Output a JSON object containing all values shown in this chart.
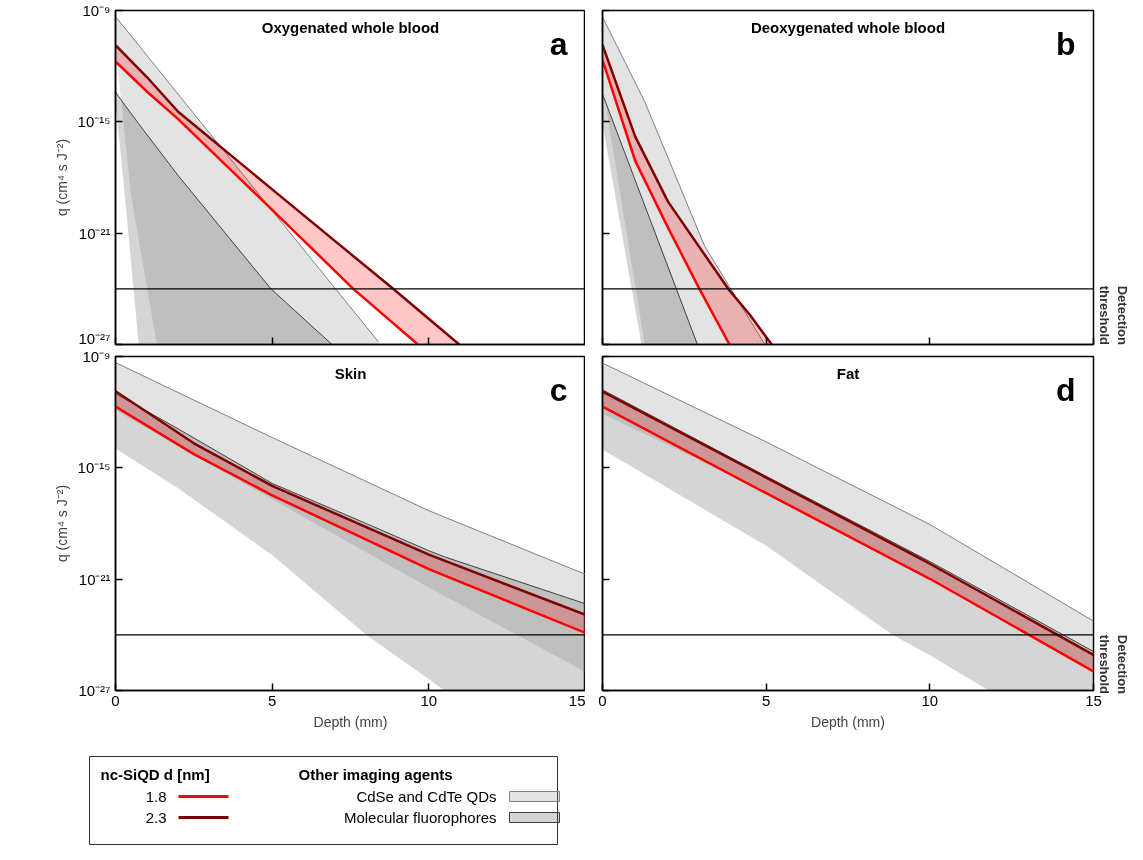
{
  "chart_data": [
    {
      "type": "line",
      "title": "Oxygenated whole blood",
      "ylabel": "q (cm⁴ s J⁻²)",
      "legend": "bottom",
      "legend_title": "nc-SiQD d [nm]",
      "annotations": [
        "a",
        "Other imaging agents"
      ],
      "tick_labels": "y",
      "log": "y",
      "xlim": [
        0,
        15
      ],
      "xticks": [
        0,
        5,
        10,
        15
      ],
      "ylim": [
        1e-27,
        1e-09
      ],
      "yticks": [
        {
          "value": 1e-09,
          "label": "10⁻⁹"
        },
        {
          "value": 1e-15,
          "label": "10⁻¹⁵"
        },
        {
          "value": 1e-21,
          "label": "10⁻²¹"
        },
        {
          "value": 1e-27,
          "label": "10⁻²⁷"
        }
      ],
      "ref_lines": [
        {
          "axis": "y",
          "value": 1e-24,
          "color": "#000000"
        }
      ],
      "series": [
        {
          "name": "CdSe and CdTe QDs",
          "color": "#808080",
          "x": [
            0,
            0.5,
            1.32,
            4,
            8.39
          ],
          "values": [
            4.7e-10,
            4.3e-11,
            8.1e-13,
            2e-18,
            1.4e-27
          ],
          "upper": [
            4.7e-10,
            4.3e-11,
            8.1e-13,
            2e-18,
            1.4e-27
          ],
          "lower": [
            1e-11,
            1e-19,
            1e-27,
            1e-27,
            1e-27
          ]
        },
        {
          "name": "Molecular fluorophores",
          "color": "#404040",
          "x": [
            0,
            0.3,
            0.74,
            2,
            4.96,
            6.91
          ],
          "values": [
            4e-14,
            7.9e-15,
            7.9e-16,
            1.26e-18,
            1e-24,
            1e-27
          ],
          "upper": [
            4e-14,
            7.9e-15,
            7.9e-16,
            1.26e-18,
            1e-24,
            1e-27
          ],
          "lower": [
            1e-14,
            1e-19,
            1e-27,
            1e-27,
            1e-27,
            1e-27
          ]
        },
        {
          "name": "1.8",
          "color": "#ff0000",
          "x": [
            0,
            1,
            2,
            5,
            7.59,
            9.65,
            10.97
          ],
          "values": [
            1.8e-12,
            4.3e-14,
            1.4e-15,
            1.8e-20,
            1e-24,
            1e-27,
            null
          ],
          "lower": [
            1.8e-12,
            4.3e-14,
            1.4e-15,
            1.8e-20,
            1e-24,
            1e-27,
            1e-27
          ],
          "upper": [
            1.35e-11,
            2.6e-13,
            3.5e-15,
            2.3e-19,
            5.9e-23,
            7.6e-26,
            1e-27
          ]
        },
        {
          "name": "2.3",
          "color": "#7f0000",
          "x": [
            0,
            1,
            2,
            5,
            8.86,
            10.97
          ],
          "values": [
            1.35e-11,
            2.6e-13,
            3.5e-15,
            2.3e-19,
            1e-24,
            1e-27
          ]
        }
      ]
    },
    {
      "type": "line",
      "title": "Deoxygenated whole blood",
      "annotations": [
        "b"
      ],
      "tick_labels": false,
      "log": "y",
      "xlim": [
        0,
        15
      ],
      "xticks": [
        0,
        5,
        10,
        15
      ],
      "ylim": [
        1e-27,
        1e-09
      ],
      "yticks": [
        {
          "value": 1e-09,
          "label": null
        },
        {
          "value": 1e-15,
          "label": null
        },
        {
          "value": 1e-21,
          "label": null
        },
        {
          "value": 1e-27,
          "label": null
        }
      ],
      "ref_lines": [
        {
          "axis": "y",
          "value": 1e-24,
          "label": "Detection threshold",
          "color": "#000000"
        }
      ],
      "series": [
        {
          "color": "#808080",
          "x": [
            0,
            1.29,
            3.12,
            4.96
          ],
          "values": [
            4.5e-10,
            1.23e-14,
            2e-22,
            1e-27
          ],
          "upper": [
            4.5e-10,
            1.23e-14,
            2e-22,
            1e-27
          ],
          "lower": [
            1e-13,
            1e-27,
            1e-27,
            1e-27
          ]
        },
        {
          "color": "#404040",
          "x": [
            0,
            1.19,
            2.9
          ],
          "values": [
            3.2e-14,
            9.1e-20,
            1e-27
          ],
          "upper": [
            3.2e-14,
            9.1e-20,
            1e-27
          ],
          "lower": [
            7.9e-16,
            1e-27,
            1e-27
          ]
        },
        {
          "color": "#ff0000",
          "x": [
            0,
            1,
            2,
            2.96,
            3.88,
            4.5,
            5.17
          ],
          "values": [
            2.2e-12,
            7.9e-18,
            2e-21,
            1e-24,
            1e-27,
            null,
            null
          ],
          "lower": [
            2.2e-12,
            7.9e-18,
            2e-21,
            1e-24,
            1e-27,
            1e-27,
            1e-27
          ],
          "upper": [
            1.41e-11,
            1.6e-16,
            5e-20,
            1.8e-22,
            8.3e-25,
            4e-26,
            1e-27
          ]
        },
        {
          "color": "#7f0000",
          "x": [
            0,
            1,
            2,
            3.84,
            4.5,
            5.17
          ],
          "values": [
            1.41e-11,
            1.6e-16,
            5e-20,
            1e-24,
            4e-26,
            1e-27
          ]
        }
      ]
    },
    {
      "type": "line",
      "title": "Skin",
      "xlabel": "Depth (mm)",
      "ylabel": "q (cm⁴ s J⁻²)",
      "annotations": [
        "c"
      ],
      "log": "y",
      "xlim": [
        0,
        15
      ],
      "xticks": [
        0,
        5,
        10,
        15
      ],
      "ylim": [
        1e-27,
        1e-09
      ],
      "yticks": [
        {
          "value": 1e-09,
          "label": "10⁻⁹"
        },
        {
          "value": 1e-15,
          "label": "10⁻¹⁵"
        },
        {
          "value": 1e-21,
          "label": "10⁻²¹"
        },
        {
          "value": 1e-27,
          "label": "10⁻²⁷"
        }
      ],
      "ref_lines": [
        {
          "axis": "y",
          "value": 1e-24,
          "color": "#000000"
        }
      ],
      "series": [
        {
          "color": "#808080",
          "x": [
            0,
            5,
            10,
            15
          ],
          "values": [
            4.7e-10,
            4.3e-14,
            4.9e-18,
            1.8e-21
          ],
          "upper": [
            4.7e-10,
            4.3e-14,
            4.9e-18,
            1.8e-21
          ],
          "lower": [
            1.26e-12,
            2e-17,
            3.6e-22,
            1e-26
          ]
        },
        {
          "color": "#404040",
          "x": [
            0,
            2,
            5,
            8,
            10,
            10.5,
            15
          ],
          "values": [
            1e-11,
            1.26e-13,
            1.45e-16,
            1e-18,
            3.4e-20,
            1.6e-20,
            4.7e-23
          ],
          "upper": [
            1e-11,
            1.26e-13,
            1.45e-16,
            1e-18,
            3.4e-20,
            1.6e-20,
            4.7e-23
          ],
          "lower": [
            1.1e-14,
            7.9e-17,
            2e-20,
            1e-24,
            4e-27,
            1e-27,
            1e-27
          ]
        },
        {
          "color": "#ff0000",
          "x": [
            0,
            2.5,
            5,
            10,
            15
          ],
          "values": [
            2e-12,
            5.5e-15,
            3.3e-17,
            3.5e-21,
            1.26e-24
          ],
          "lower": [
            2e-12,
            5.5e-15,
            3.3e-17,
            3.5e-21,
            1.26e-24
          ],
          "upper": [
            1.35e-11,
            2.1e-14,
            1.07e-16,
            2.1e-20,
            1.2e-23
          ]
        },
        {
          "color": "#7f0000",
          "x": [
            0,
            2.5,
            5,
            10,
            15
          ],
          "values": [
            1.35e-11,
            2.1e-14,
            1.07e-16,
            2.1e-20,
            1.2e-23
          ]
        }
      ]
    },
    {
      "type": "line",
      "title": "Fat",
      "xlabel": "Depth (mm)",
      "annotations": [
        "d"
      ],
      "tick_labels": "x",
      "log": "y",
      "xlim": [
        0,
        15
      ],
      "xticks": [
        0,
        5,
        10,
        15
      ],
      "ylim": [
        1e-27,
        1e-09
      ],
      "yticks": [
        {
          "value": 1e-09,
          "label": null
        },
        {
          "value": 1e-15,
          "label": null
        },
        {
          "value": 1e-21,
          "label": null
        },
        {
          "value": 1e-27,
          "label": null
        }
      ],
      "ref_lines": [
        {
          "axis": "y",
          "value": 1e-24,
          "label": "Detection threshold",
          "color": "#000000"
        }
      ],
      "series": [
        {
          "color": "#808080",
          "x": [
            0,
            5,
            10,
            15
          ],
          "values": [
            4.4e-10,
            2.5e-14,
            8.9e-19,
            5.5e-24
          ],
          "upper": [
            4.4e-10,
            2.5e-14,
            8.9e-19,
            5.5e-24
          ],
          "lower": [
            7.9e-13,
            5e-17,
            1.26e-21,
            1.26e-26
          ]
        },
        {
          "color": "#404040",
          "x": [
            0,
            5,
            8.86,
            10,
            11.8,
            15
          ],
          "values": [
            1.6e-11,
            3.5e-16,
            1e-19,
            8.9e-21,
            1.6e-22,
            1.26e-25
          ],
          "upper": [
            1.6e-11,
            3.5e-16,
            1e-19,
            8.9e-21,
            1.6e-22,
            1.26e-25
          ],
          "lower": [
            9.8e-15,
            6.3e-20,
            1e-24,
            7.9e-26,
            1e-27,
            1e-27
          ]
        },
        {
          "color": "#ff0000",
          "x": [
            0,
            5,
            10,
            15
          ],
          "values": [
            2e-12,
            4.3e-17,
            1.05e-21,
            1.07e-26
          ],
          "lower": [
            2e-12,
            4.3e-17,
            1.05e-21,
            1.07e-26
          ],
          "upper": [
            1.3e-11,
            3e-16,
            6.8e-21,
            8.3e-26
          ]
        },
        {
          "color": "#7f0000",
          "x": [
            0,
            5,
            10,
            15
          ],
          "values": [
            1.3e-11,
            3e-16,
            6.8e-21,
            8.3e-26
          ]
        }
      ]
    }
  ]
}
